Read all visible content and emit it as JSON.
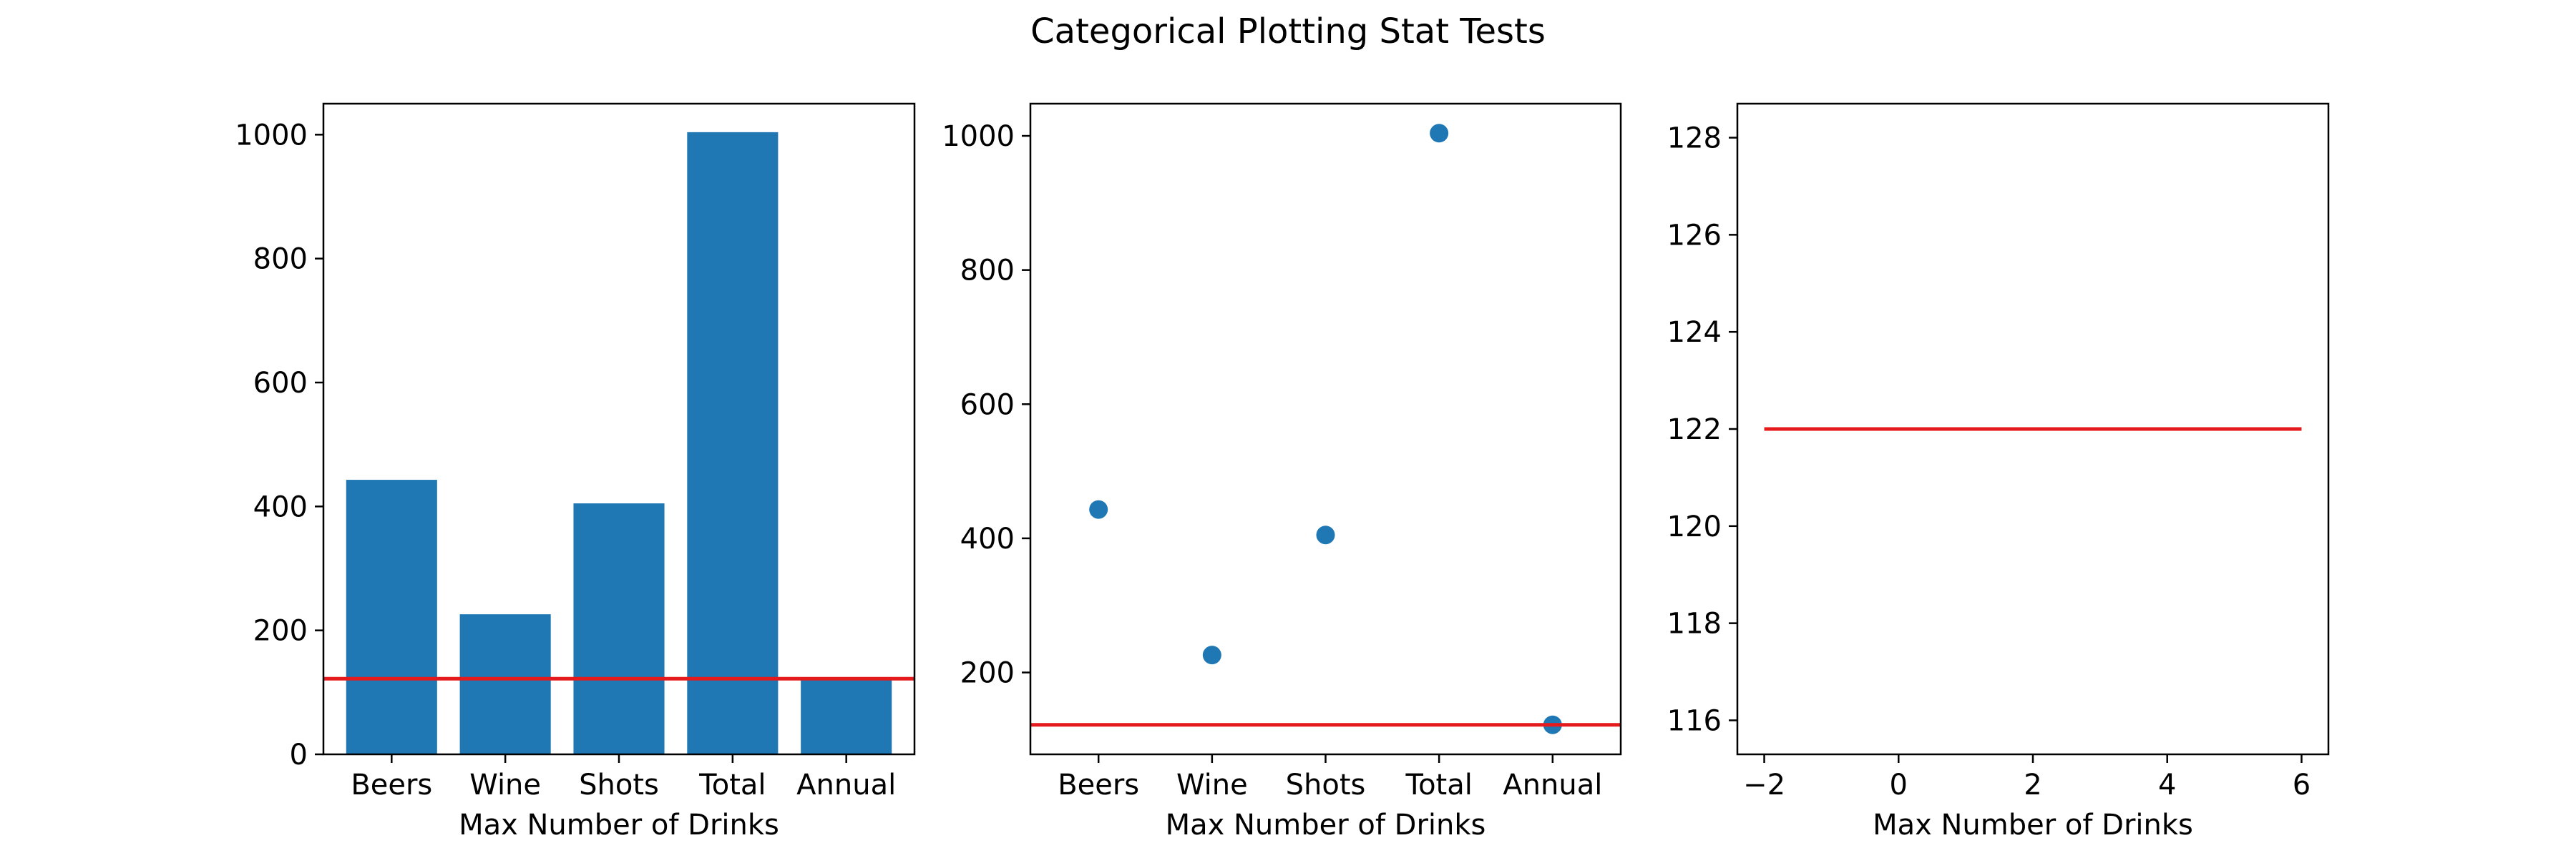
{
  "figure": {
    "suptitle": "Categorical Plotting Stat Tests",
    "bar_color": "#1f77b4",
    "point_color": "#1f77b4",
    "line_color": "#e41a1c"
  },
  "chart_data": [
    {
      "type": "bar",
      "categories": [
        "Beers",
        "Wine",
        "Shots",
        "Total",
        "Annual"
      ],
      "values": [
        443,
        226,
        405,
        1004,
        122
      ],
      "xlabel": "Max Number of Drinks",
      "ylabel": "",
      "ylim": [
        0,
        1050
      ],
      "yticks": [
        0,
        200,
        400,
        600,
        800,
        1000
      ],
      "hline": 122
    },
    {
      "type": "scatter",
      "categories": [
        "Beers",
        "Wine",
        "Shots",
        "Total",
        "Annual"
      ],
      "values": [
        443,
        226,
        405,
        1004,
        122
      ],
      "xlabel": "Max Number of Drinks",
      "ylabel": "",
      "ylim": [
        78,
        1048
      ],
      "yticks": [
        200,
        400,
        600,
        800,
        1000
      ],
      "hline": 122
    },
    {
      "type": "line",
      "x": [
        -2,
        6
      ],
      "y": [
        122,
        122
      ],
      "xlabel": "Max Number of Drinks",
      "ylabel": "",
      "xlim": [
        -2.4,
        6.4
      ],
      "ylim": [
        115.3,
        128.7
      ],
      "xticks": [
        -2,
        0,
        2,
        4,
        6
      ],
      "xtick_labels": [
        "−2",
        "0",
        "2",
        "4",
        "6"
      ],
      "yticks": [
        116,
        118,
        120,
        122,
        124,
        126,
        128
      ]
    }
  ]
}
